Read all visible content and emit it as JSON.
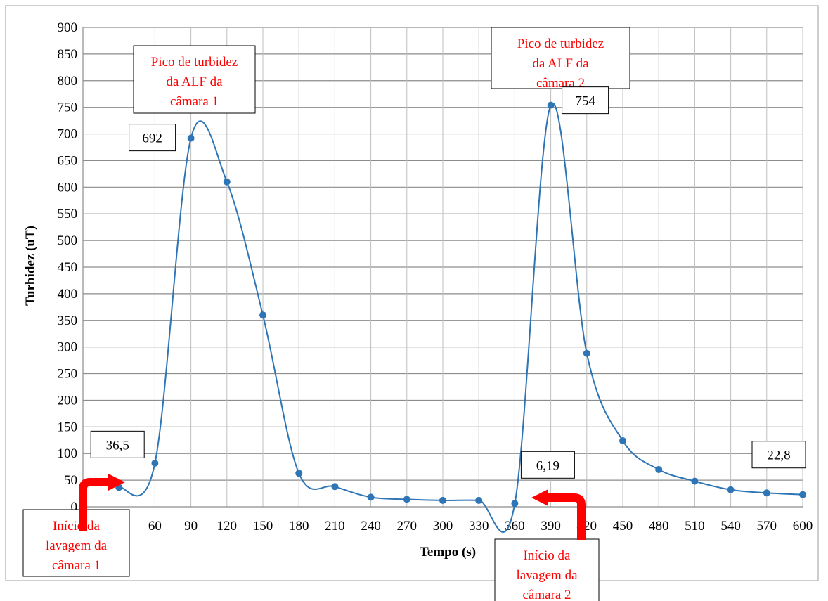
{
  "chart_data": {
    "type": "line",
    "xlabel": "Tempo (s)",
    "ylabel": "Turbidez  (uT)",
    "xlim": [
      0,
      600
    ],
    "ylim": [
      0,
      900
    ],
    "x_ticks": [
      0,
      60,
      90,
      120,
      150,
      180,
      210,
      240,
      270,
      300,
      330,
      360,
      390,
      420,
      450,
      480,
      510,
      540,
      570,
      600
    ],
    "x_tick_labels": [
      "0",
      "60",
      "90",
      "120",
      "150",
      "180",
      "210",
      "240",
      "270",
      "300",
      "330",
      "360",
      "390",
      "420",
      "450",
      "480",
      "510",
      "540",
      "570",
      "600"
    ],
    "y_ticks": [
      0,
      50,
      100,
      150,
      200,
      250,
      300,
      350,
      400,
      450,
      500,
      550,
      600,
      650,
      700,
      750,
      800,
      850,
      900
    ],
    "grid": true,
    "legend": "none",
    "series": [
      {
        "color": "#2E75B6",
        "x": [
          0,
          30,
          60,
          90,
          120,
          150,
          180,
          210,
          240,
          270,
          300,
          330,
          360,
          390,
          420,
          450,
          480,
          510,
          540,
          570,
          600
        ],
        "y": [
          null,
          36.5,
          82,
          692,
          610,
          360,
          63,
          38,
          18,
          14,
          12,
          12,
          6.19,
          754,
          288,
          124,
          70,
          48,
          32,
          26,
          22.8
        ]
      }
    ],
    "data_labels": [
      {
        "x": 30,
        "y": 36.5,
        "text": "36,5"
      },
      {
        "x": 90,
        "y": 692,
        "text": "692"
      },
      {
        "x": 360,
        "y": 6.19,
        "text": "6,19"
      },
      {
        "x": 390,
        "y": 754,
        "text": "754"
      },
      {
        "x": 600,
        "y": 22.8,
        "text": "22,8"
      }
    ],
    "annotations": [
      {
        "lines": [
          "Pico de turbidez",
          "da ALF da",
          "câmara  1"
        ],
        "color": "#ff0000"
      },
      {
        "lines": [
          "Pico de turbidez",
          "da ALF da",
          "câmara  2"
        ],
        "color": "#ff0000"
      },
      {
        "lines": [
          "Início da",
          "lavagem da",
          "câmara  1"
        ],
        "color": "#ff0000"
      },
      {
        "lines": [
          "Início da",
          "lavagem da",
          "câmara  2"
        ],
        "color": "#ff0000"
      }
    ],
    "arrow_color": "#ff0000"
  }
}
